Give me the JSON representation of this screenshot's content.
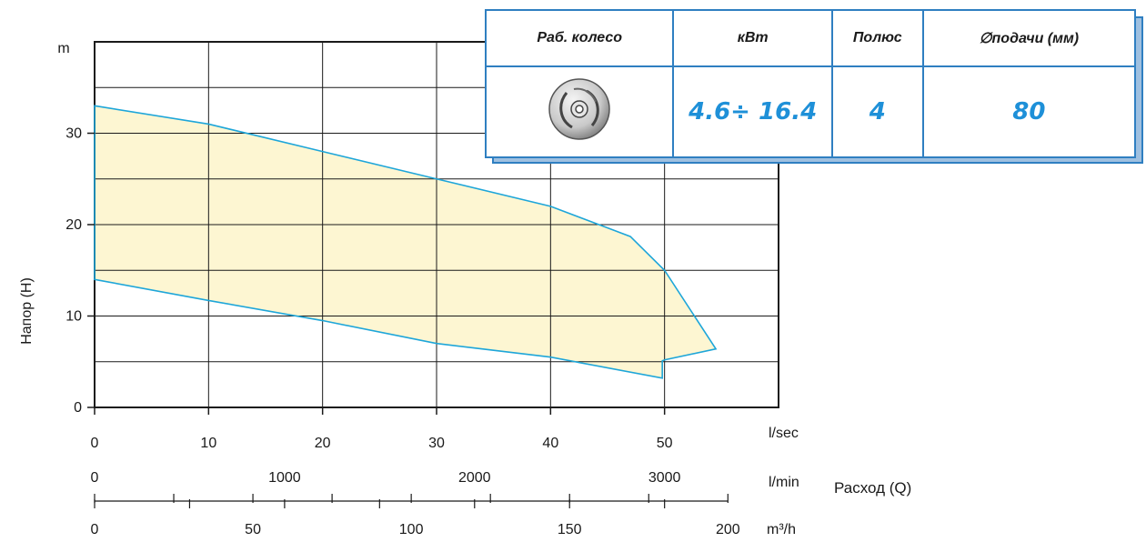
{
  "chart_data": {
    "type": "area",
    "y_unit": "m",
    "ylabel": "Напор (H)",
    "xlabel": "Расход (Q)",
    "ylim": [
      0,
      40
    ],
    "yticks": [
      0,
      10,
      20,
      30
    ],
    "x_axes": [
      {
        "unit": "l/sec",
        "range": [
          0,
          60
        ],
        "ticks": [
          0,
          10,
          20,
          30,
          40,
          50
        ]
      },
      {
        "unit": "l/min",
        "range": [
          0,
          3600
        ],
        "ticks": [
          0,
          1000,
          2000,
          3000
        ]
      },
      {
        "unit": "m³/h",
        "range": [
          0,
          216
        ],
        "ticks": [
          0,
          50,
          100,
          150,
          200
        ]
      }
    ],
    "grid": true,
    "series": [
      {
        "fill": "#fdf6d2",
        "stroke": "#1ea6d9",
        "x": [
          0,
          10,
          20,
          30,
          40,
          47,
          50,
          54.5,
          50,
          49.8,
          49.8,
          40,
          30,
          20,
          10,
          0
        ],
        "y": [
          33,
          31,
          28,
          25,
          22,
          18.7,
          15,
          6.4,
          5.2,
          5.1,
          3.2,
          5.5,
          7,
          9.5,
          11.7,
          14
        ]
      }
    ]
  },
  "spec_table": {
    "headers": [
      "Раб. колесо",
      "кВт",
      "Полюс",
      "∅подачи (мм)"
    ],
    "values": [
      "",
      "4.6÷ 16.4",
      "4",
      "80"
    ],
    "impeller_icon": "impeller-icon"
  },
  "colors": {
    "accent": "#1ea6d9",
    "table_border": "#2f7fc1",
    "fill": "#fdf6d2"
  }
}
